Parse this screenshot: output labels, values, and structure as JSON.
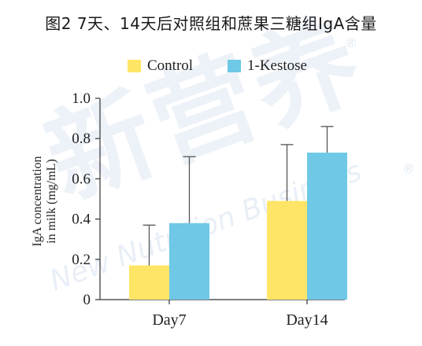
{
  "title": "图2  7天、14天后对照组和蔗果三糖组IgA含量",
  "watermark": {
    "cn": "新营养",
    "en": "New Nutrition Business",
    "registered": "®"
  },
  "colors": {
    "control": "#FFE566",
    "kestose": "#6EC8E6",
    "axis": "#333333",
    "error_bar": "#555555"
  },
  "chart_data": {
    "type": "bar",
    "categories": [
      "Day7",
      "Day14"
    ],
    "series": [
      {
        "name": "Control",
        "values": [
          0.17,
          0.49
        ],
        "error": [
          0.2,
          0.28
        ],
        "color": "#FFE566"
      },
      {
        "name": "1-Kestose",
        "values": [
          0.38,
          0.73
        ],
        "error": [
          0.33,
          0.13
        ],
        "color": "#6EC8E6"
      }
    ],
    "ylabel": [
      "IgA concentration",
      "in milk  (mg/mL)"
    ],
    "xlabel": "",
    "ylim": [
      0,
      1.0
    ],
    "yticks": [
      "0",
      "0.2",
      "0.4",
      "0.6",
      "0.8",
      "1.0"
    ],
    "legend_position": "top"
  }
}
